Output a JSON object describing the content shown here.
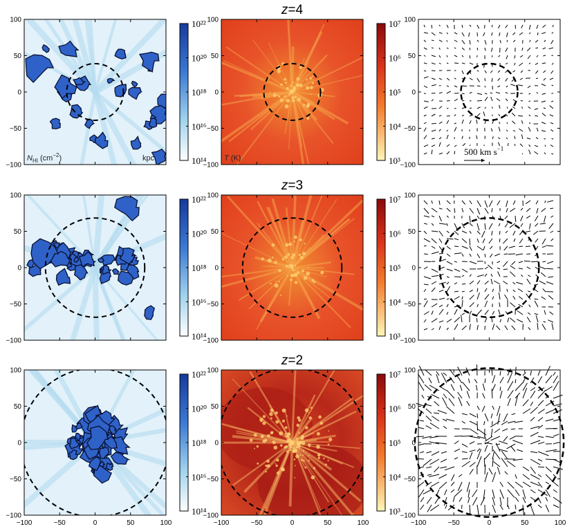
{
  "figure": {
    "rows": [
      {
        "redshift_label": "z=4",
        "circle_radius_kpc": 40
      },
      {
        "redshift_label": "z=3",
        "circle_radius_kpc": 70
      },
      {
        "redshift_label": "z=2",
        "circle_radius_kpc": 105
      }
    ],
    "axis_ticks": [
      "100",
      "50",
      "0",
      "−50",
      "−100"
    ],
    "x_ticks": [
      "−100",
      "−50",
      "0",
      "50",
      "100"
    ],
    "colorbars": {
      "hi": {
        "labels": [
          "10²²",
          "10²⁰",
          "10¹⁸",
          "10¹⁶",
          "10¹⁴"
        ],
        "top": "#1e44b0",
        "bottom": "#ffffff"
      },
      "temp": {
        "labels": [
          "10⁷",
          "10⁶",
          "10⁵",
          "10⁴",
          "10³"
        ],
        "top": "#a01010",
        "bottom": "#fff4b0"
      }
    },
    "panel_labels": {
      "hi": "Nₕᵢ (cm⁻²)",
      "hi_main": "N",
      "hi_sub": "HI",
      "hi_unit": " (cm",
      "hi_exp": "−2",
      "hi_close": ")",
      "kpc": "kpc",
      "temp": "T (K)",
      "velocity": "500 km s⁻¹",
      "vel_main": "500 km s",
      "vel_exp": "−1"
    },
    "colors": {
      "hi_blue": "#2f62c8",
      "hi_light": "#cfe8f6",
      "temp_red": "#e8431e",
      "temp_orange": "#f47a2a",
      "temp_dark": "#c42a14"
    }
  }
}
